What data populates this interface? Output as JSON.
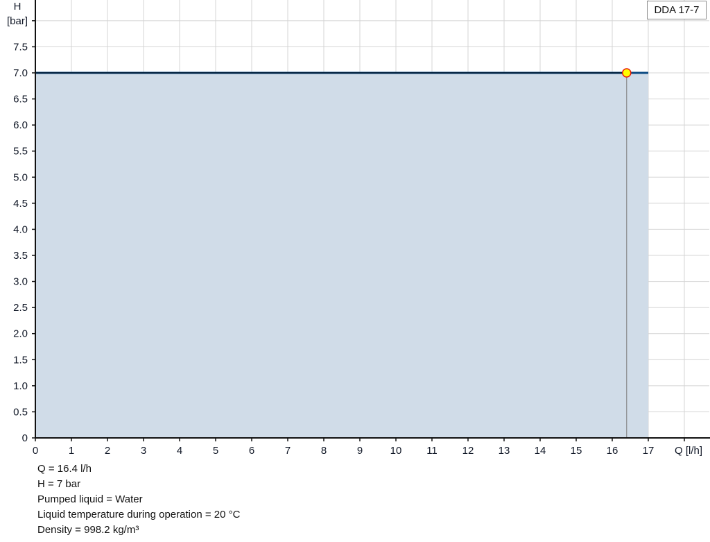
{
  "chart_data": {
    "type": "area",
    "title": "",
    "xlabel": "Q [l/h]",
    "ylabel_line1": "H",
    "ylabel_line2": "[bar]",
    "xlim": [
      0,
      18.7
    ],
    "ylim": [
      0,
      8.4
    ],
    "x_ticks": [
      0,
      1,
      2,
      3,
      4,
      5,
      6,
      7,
      8,
      9,
      10,
      11,
      12,
      13,
      14,
      15,
      16,
      17
    ],
    "y_ticks": [
      "0",
      "0.5",
      "1.0",
      "1.5",
      "2.0",
      "2.5",
      "3.0",
      "3.5",
      "4.0",
      "4.5",
      "5.0",
      "5.5",
      "6.0",
      "6.5",
      "7.0",
      "7.5"
    ],
    "y_grid_step": 0.5,
    "grid": true,
    "legend_position": "top-right",
    "series": [
      {
        "name": "DDA 17-7",
        "x": [
          0,
          17
        ],
        "y": [
          7.0,
          7.0
        ],
        "color": "#0b4a82",
        "fill": "#d0dce8"
      }
    ],
    "operating_point": {
      "q": 16.4,
      "h": 7.0,
      "fill": "#ffff00",
      "stroke": "#e8190c"
    }
  },
  "info": {
    "lines": [
      "Q = 16.4 l/h",
      "H = 7 bar",
      "Pumped liquid = Water",
      "Liquid temperature during operation = 20 °C",
      "Density = 998.2 kg/m³"
    ]
  }
}
